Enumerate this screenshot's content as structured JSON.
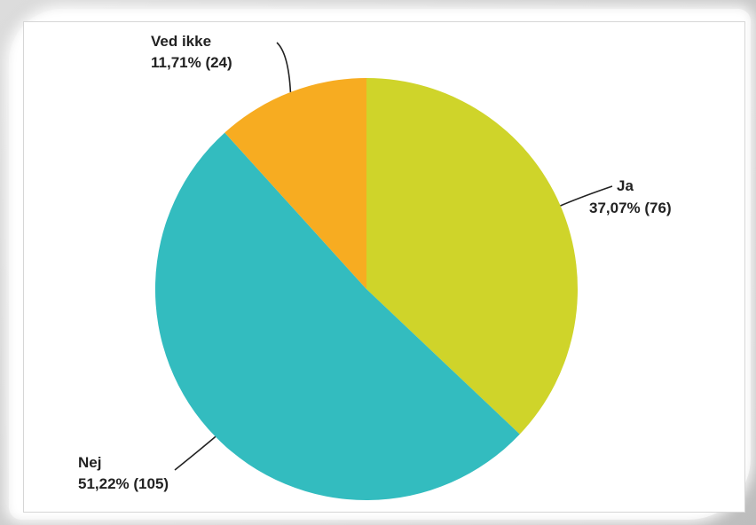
{
  "chart_data": {
    "type": "pie",
    "title": "",
    "slices": [
      {
        "label": "Ja",
        "value_text": "37,07% (76)",
        "percent": 37.07,
        "count": 76,
        "color": "#cfd42a"
      },
      {
        "label": "Nej",
        "value_text": "51,22% (105)",
        "percent": 51.22,
        "count": 105,
        "color": "#33bcbf"
      },
      {
        "label": "Ved ikke",
        "value_text": "11,71% (24)",
        "percent": 11.71,
        "count": 24,
        "color": "#f7ac21"
      }
    ],
    "start": "12 o'clock",
    "direction": "clockwise",
    "legend": "none"
  }
}
